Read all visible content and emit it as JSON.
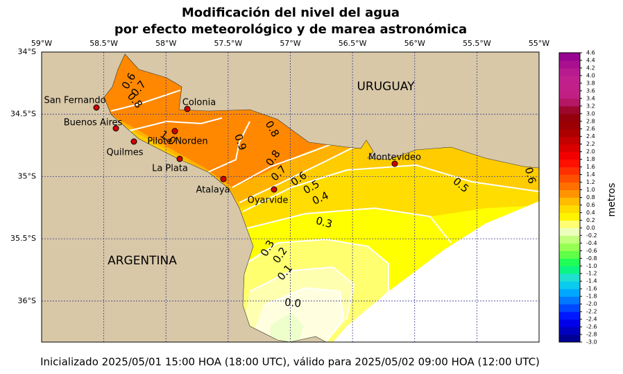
{
  "chart_data": {
    "type": "contour_map",
    "title": "Modificación del nivel del agua",
    "subtitle": "por efecto meteorológico y de marea astronómica",
    "footer": "Inicializado 2025/05/01 15:00 HOA (18:00 UTC), válido para 2025/05/02 09:00 HOA (12:00 UTC)",
    "xlim": [
      -59,
      -55
    ],
    "ylim": [
      -36.33,
      -34
    ],
    "xticks": [
      {
        "value": -59,
        "label": "59°W"
      },
      {
        "value": -58.5,
        "label": "58.5°W"
      },
      {
        "value": -58,
        "label": "58°W"
      },
      {
        "value": -57.5,
        "label": "57.5°W"
      },
      {
        "value": -57,
        "label": "57°W"
      },
      {
        "value": -56.5,
        "label": "56.5°W"
      },
      {
        "value": -56,
        "label": "56°W"
      },
      {
        "value": -55.5,
        "label": "55.5°W"
      },
      {
        "value": -55,
        "label": "55°W"
      }
    ],
    "yticks": [
      {
        "value": -34,
        "label": "34°S"
      },
      {
        "value": -34.5,
        "label": "34.5°S"
      },
      {
        "value": -35,
        "label": "35°S"
      },
      {
        "value": -35.5,
        "label": "35.5°S"
      },
      {
        "value": -36,
        "label": "36°S"
      }
    ],
    "grid": true,
    "countries": [
      "URUGUAY",
      "ARGENTINA"
    ],
    "cities": [
      "San Fernando",
      "Buenos Aires",
      "Quilmes",
      "Pilote Norden",
      "La Plata",
      "Colonia",
      "Atalaya",
      "Oyarvide",
      "Montevideo"
    ],
    "contour_labels": [
      {
        "value": 0.6,
        "label": "0.6"
      },
      {
        "value": 0.7,
        "label": "0.7"
      },
      {
        "value": 0.8,
        "label": "0.8"
      },
      {
        "value": 1.0,
        "label": "1.0"
      },
      {
        "value": 0.9,
        "label": "0.9"
      },
      {
        "value": 0.8,
        "label": "0.8"
      },
      {
        "value": 0.8,
        "label": "0.8"
      },
      {
        "value": 0.7,
        "label": "0.7"
      },
      {
        "value": 0.6,
        "label": "0.6"
      },
      {
        "value": 0.5,
        "label": "0.5"
      },
      {
        "value": 0.4,
        "label": "0.4"
      },
      {
        "value": 0.3,
        "label": "0.3"
      },
      {
        "value": 0.3,
        "label": "0.3"
      },
      {
        "value": 0.2,
        "label": "0.2"
      },
      {
        "value": 0.1,
        "label": "0.1"
      },
      {
        "value": 0.0,
        "label": "0.0"
      },
      {
        "value": 0.5,
        "label": "0.5"
      },
      {
        "value": 0.6,
        "label": "0.6"
      }
    ],
    "colorbar": {
      "label": "metros",
      "lim": [
        -3.0,
        4.6
      ],
      "ticks": [
        {
          "value": -3.0,
          "label": "-3.0"
        },
        {
          "value": -2.8,
          "label": "-2.8"
        },
        {
          "value": -2.6,
          "label": "-2.6"
        },
        {
          "value": -2.4,
          "label": "-2.4"
        },
        {
          "value": -2.2,
          "label": "-2.2"
        },
        {
          "value": -2.0,
          "label": "-2.0"
        },
        {
          "value": -1.8,
          "label": "-1.8"
        },
        {
          "value": -1.6,
          "label": "-1.6"
        },
        {
          "value": -1.4,
          "label": "-1.4"
        },
        {
          "value": -1.2,
          "label": "-1.2"
        },
        {
          "value": -1.0,
          "label": "-1.0"
        },
        {
          "value": -0.8,
          "label": "-0.8"
        },
        {
          "value": -0.6,
          "label": "-0.6"
        },
        {
          "value": -0.4,
          "label": "-0.4"
        },
        {
          "value": -0.2,
          "label": "-0.2"
        },
        {
          "value": 0.0,
          "label": "0.0"
        },
        {
          "value": 0.2,
          "label": "0.2"
        },
        {
          "value": 0.4,
          "label": "0.4"
        },
        {
          "value": 0.6,
          "label": "0.6"
        },
        {
          "value": 0.8,
          "label": "0.8"
        },
        {
          "value": 1.0,
          "label": "1.0"
        },
        {
          "value": 1.2,
          "label": "1.2"
        },
        {
          "value": 1.4,
          "label": "1.4"
        },
        {
          "value": 1.6,
          "label": "1.6"
        },
        {
          "value": 1.8,
          "label": "1.8"
        },
        {
          "value": 2.0,
          "label": "2.0"
        },
        {
          "value": 2.2,
          "label": "2.2"
        },
        {
          "value": 2.4,
          "label": "2.4"
        },
        {
          "value": 2.6,
          "label": "2.6"
        },
        {
          "value": 2.8,
          "label": "2.8"
        },
        {
          "value": 3.0,
          "label": "3.0"
        },
        {
          "value": 3.2,
          "label": "3.2"
        },
        {
          "value": 3.4,
          "label": "3.4"
        },
        {
          "value": 3.6,
          "label": "3.6"
        },
        {
          "value": 3.8,
          "label": "3.8"
        },
        {
          "value": 4.0,
          "label": "4.0"
        },
        {
          "value": 4.2,
          "label": "4.2"
        },
        {
          "value": 4.4,
          "label": "4.4"
        },
        {
          "value": 4.6,
          "label": "4.6"
        }
      ],
      "colormap": [
        [
          -3.0,
          "#000080"
        ],
        [
          -2.4,
          "#0000ff"
        ],
        [
          -2.0,
          "#0060ff"
        ],
        [
          -1.6,
          "#00c0ff"
        ],
        [
          -1.3,
          "#20e0d0"
        ],
        [
          -1.0,
          "#00ff60"
        ],
        [
          -0.6,
          "#80ff40"
        ],
        [
          -0.2,
          "#d8ff90"
        ],
        [
          0.0,
          "#ffffe8"
        ],
        [
          0.2,
          "#ffff00"
        ],
        [
          0.6,
          "#ffd000"
        ],
        [
          1.0,
          "#ff8000"
        ],
        [
          1.8,
          "#ff0000"
        ],
        [
          2.6,
          "#a00000"
        ],
        [
          3.0,
          "#900010"
        ],
        [
          3.4,
          "#c02080"
        ],
        [
          4.0,
          "#c02090"
        ],
        [
          4.6,
          "#900090"
        ]
      ]
    }
  }
}
